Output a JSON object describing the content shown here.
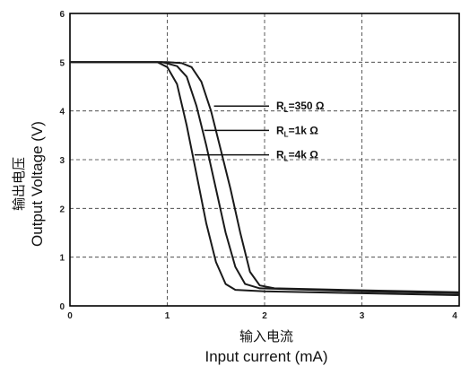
{
  "chart_data": {
    "type": "line",
    "title": "",
    "xlabel_cn": "输入电流",
    "xlabel": "Input current (mA)",
    "ylabel_cn": "输出电压",
    "ylabel": "Output  Voltage (V)",
    "xlim": [
      0,
      4
    ],
    "ylim": [
      0,
      6
    ],
    "xticks": [
      "0",
      "1",
      "2",
      "3",
      "4"
    ],
    "yticks": [
      "0",
      "1",
      "2",
      "3",
      "4",
      "5",
      "6"
    ],
    "grid": true,
    "series": [
      {
        "name": "RL=350 Ω",
        "points": [
          [
            0,
            5
          ],
          [
            1,
            5
          ],
          [
            1.15,
            4.98
          ],
          [
            1.25,
            4.9
          ],
          [
            1.35,
            4.6
          ],
          [
            1.45,
            4.0
          ],
          [
            1.55,
            3.2
          ],
          [
            1.65,
            2.4
          ],
          [
            1.75,
            1.5
          ],
          [
            1.85,
            0.7
          ],
          [
            1.95,
            0.42
          ],
          [
            2.1,
            0.36
          ],
          [
            3,
            0.32
          ],
          [
            4,
            0.28
          ]
        ]
      },
      {
        "name": "RL=1k Ω",
        "points": [
          [
            0,
            5
          ],
          [
            0.95,
            5
          ],
          [
            1.1,
            4.92
          ],
          [
            1.2,
            4.7
          ],
          [
            1.3,
            4.1
          ],
          [
            1.4,
            3.3
          ],
          [
            1.5,
            2.4
          ],
          [
            1.6,
            1.5
          ],
          [
            1.7,
            0.8
          ],
          [
            1.8,
            0.45
          ],
          [
            1.95,
            0.36
          ],
          [
            3,
            0.3
          ],
          [
            4,
            0.26
          ]
        ]
      },
      {
        "name": "RL=4k Ω",
        "points": [
          [
            0,
            5
          ],
          [
            0.9,
            5
          ],
          [
            1.0,
            4.9
          ],
          [
            1.1,
            4.55
          ],
          [
            1.2,
            3.7
          ],
          [
            1.3,
            2.7
          ],
          [
            1.4,
            1.7
          ],
          [
            1.5,
            0.9
          ],
          [
            1.6,
            0.45
          ],
          [
            1.7,
            0.33
          ],
          [
            2.0,
            0.3
          ],
          [
            3,
            0.26
          ],
          [
            4,
            0.22
          ]
        ]
      }
    ],
    "annotations": [
      {
        "main": "R",
        "sub": "L",
        "rest": "=350 Ω",
        "x": 1.48,
        "y": 4.1
      },
      {
        "main": "R",
        "sub": "L",
        "rest": "=1k Ω",
        "x": 1.38,
        "y": 3.6
      },
      {
        "main": "R",
        "sub": "L",
        "rest": "=4k Ω",
        "x": 1.28,
        "y": 3.1
      }
    ]
  }
}
